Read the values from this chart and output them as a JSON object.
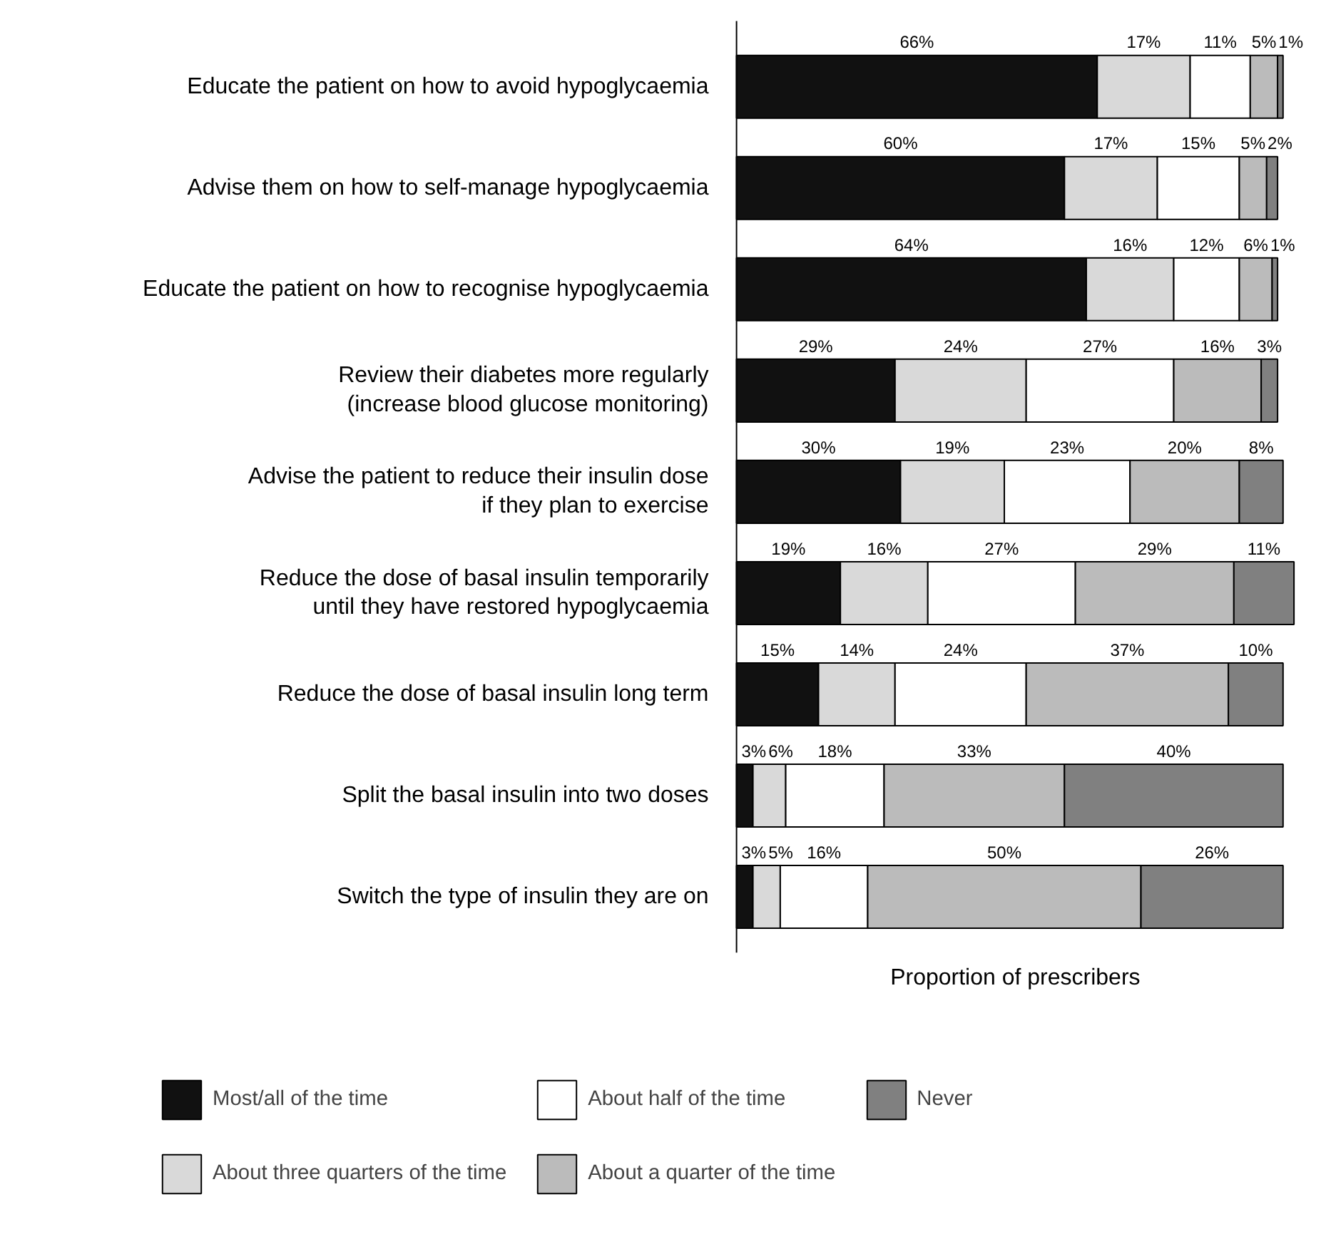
{
  "chart_data": {
    "type": "bar",
    "orientation": "horizontal",
    "stacked": true,
    "xlabel": "Proportion of prescribers",
    "legend": "bottom",
    "categories": [
      "Educate the patient on how to avoid hypoglycaemia",
      "Advise them on how to self-manage hypoglycaemia",
      "Educate the patient on how to recognise hypoglycaemia",
      "Review their diabetes more regularly\n(increase blood glucose monitoring)",
      "Advise the patient to reduce their insulin dose\nif they plan to exercise",
      "Reduce the dose of basal insulin temporarily\nuntil they have restored hypoglycaemia",
      "Reduce the dose of basal insulin long term",
      "Split the basal insulin into two doses",
      "Switch the type of insulin they are on"
    ],
    "series": [
      {
        "name": "Most/all of the time",
        "color": "#111111",
        "values": [
          66,
          60,
          64,
          29,
          30,
          19,
          15,
          3,
          3
        ],
        "value_labels": [
          "66%",
          "60%",
          "64%",
          "29%",
          "30%",
          "19%",
          "15%",
          "3%",
          "3%"
        ]
      },
      {
        "name": "About three quarters of the time",
        "color": "#d9d9d9",
        "values": [
          17,
          17,
          16,
          24,
          19,
          16,
          14,
          6,
          5
        ],
        "value_labels": [
          "17%",
          "17%",
          "16%",
          "24%",
          "19%",
          "16%",
          "14%",
          "6%",
          "5%"
        ]
      },
      {
        "name": "About half of the time",
        "color": "#ffffff",
        "values": [
          11,
          15,
          12,
          27,
          23,
          27,
          24,
          18,
          16
        ],
        "value_labels": [
          "11%",
          "15%",
          "12%",
          "27%",
          "23%",
          "27%",
          "24%",
          "18%",
          "16%"
        ]
      },
      {
        "name": "About a quarter of the time",
        "color": "#bbbbbb",
        "values": [
          5,
          5,
          6,
          16,
          20,
          29,
          37,
          33,
          50
        ],
        "value_labels": [
          "5%",
          "5%",
          "6%",
          "16%",
          "20%",
          "29%",
          "37%",
          "33%",
          "50%"
        ]
      },
      {
        "name": "Never",
        "color": "#808080",
        "values": [
          1,
          2,
          1,
          3,
          8,
          11,
          10,
          40,
          26
        ],
        "value_labels": [
          "1%",
          "2%",
          "1%",
          "3%",
          "8%",
          "11%",
          "10%",
          "40%",
          "26%"
        ]
      }
    ]
  }
}
